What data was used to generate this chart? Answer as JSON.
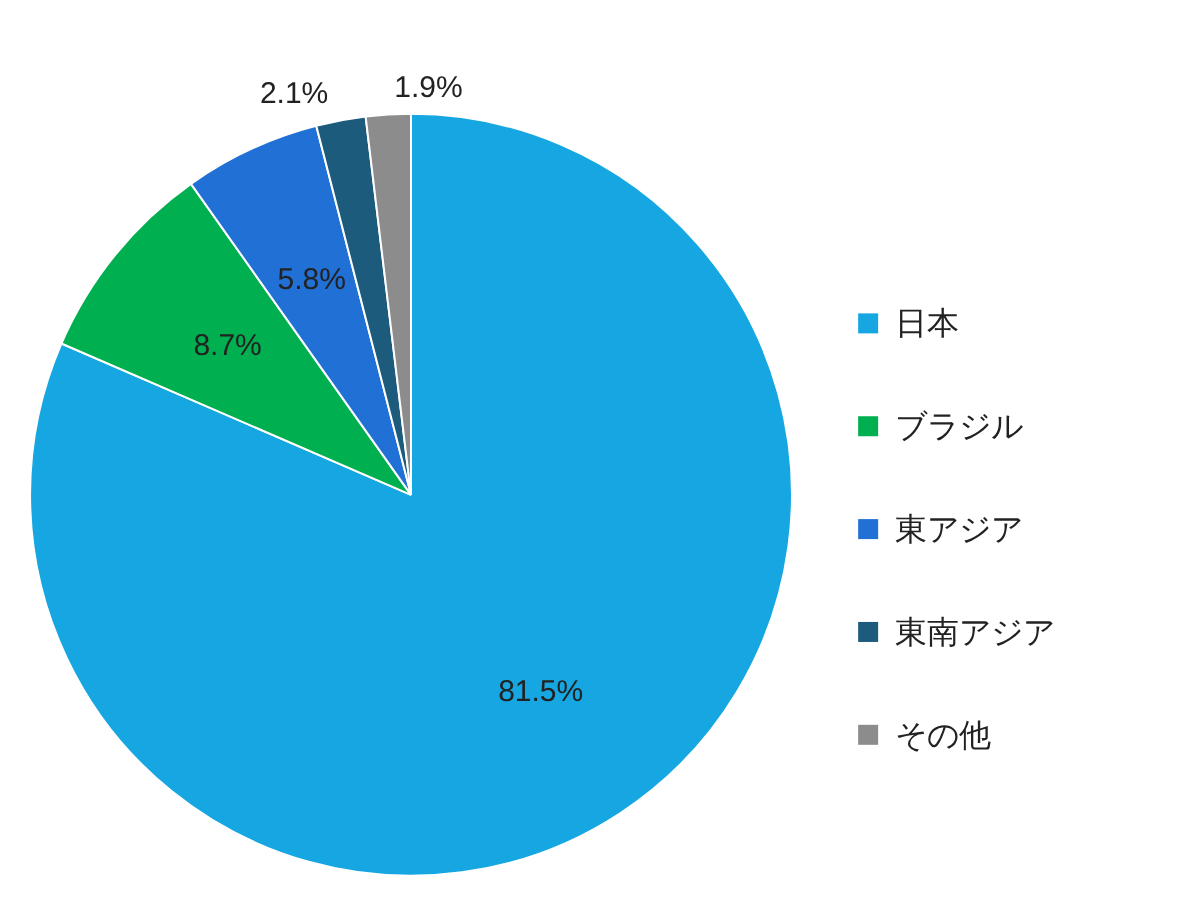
{
  "chart_data": {
    "type": "pie",
    "categories": [
      "日本",
      "ブラジル",
      "東アジア",
      "東南アジア",
      "その他"
    ],
    "values": [
      81.5,
      8.7,
      5.8,
      2.1,
      1.9
    ],
    "colors": [
      "#16a6e1",
      "#00b050",
      "#2170d6",
      "#1d5b7c",
      "#8c8c8c"
    ],
    "value_labels": [
      "81.5%",
      "8.7%",
      "5.8%",
      "2.1%",
      "1.9%"
    ],
    "legend": "right"
  }
}
